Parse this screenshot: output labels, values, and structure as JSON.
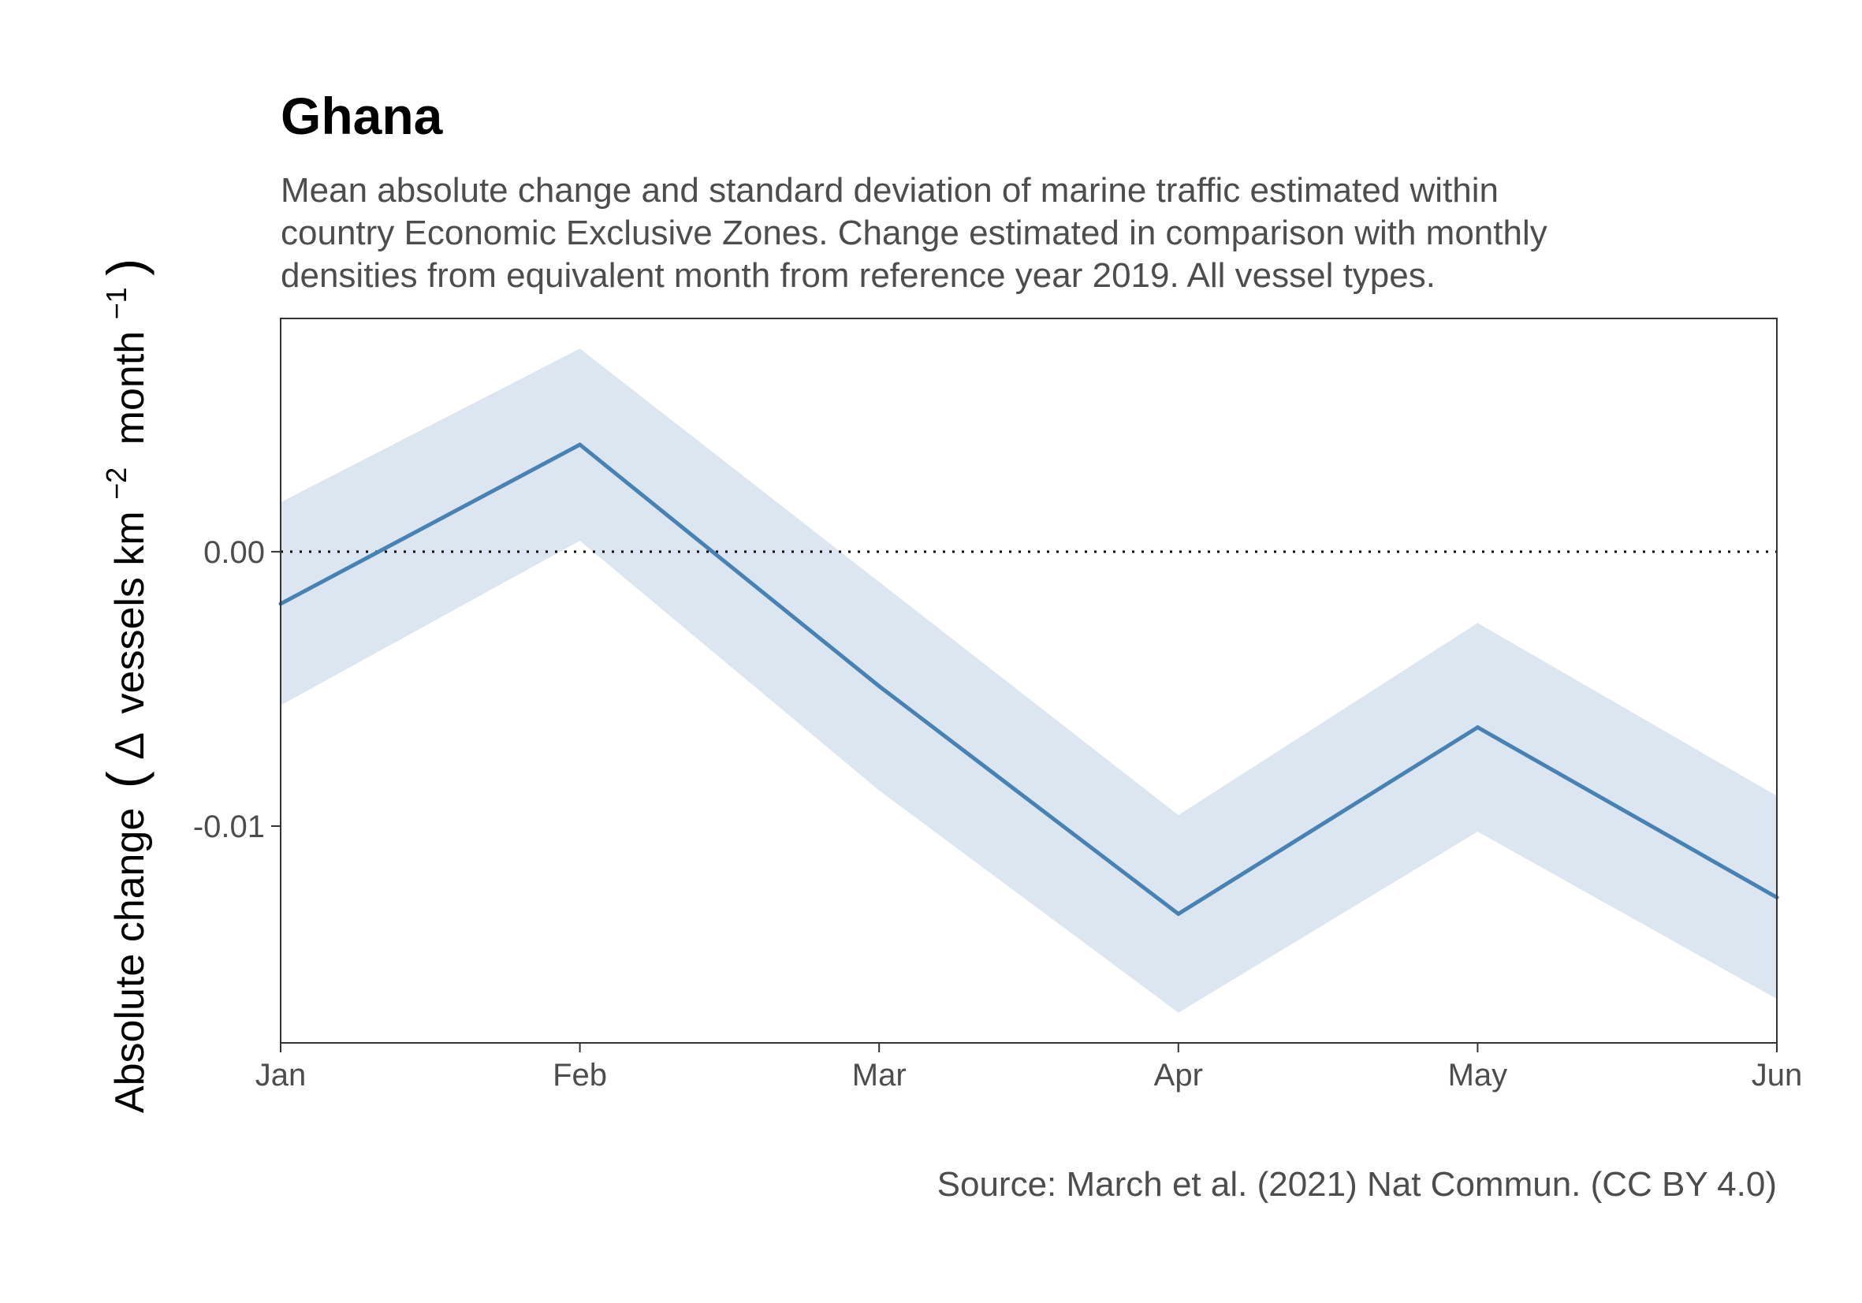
{
  "colors": {
    "line": "#4682b4",
    "ribbon": "#dce6f0",
    "text_dark": "#000000",
    "text_gray": "#4d4d4d",
    "axis": "#333333"
  },
  "chart_data": {
    "type": "line",
    "title": "Ghana",
    "subtitle": [
      "Mean absolute change and standard deviation of marine traffic estimated within",
      "country Economic Exclusive Zones. Change estimated in comparison with monthly",
      "densities from equivalent month from reference year 2019. All vessel types."
    ],
    "ylabel": {
      "pre": "Absolute change",
      "delta": "Δ",
      "units_a": "vessels km",
      "sup_a": "−2",
      "units_b": "month",
      "sup_b": "−1"
    },
    "caption": "Source: March et al. (2021) Nat Commun. (CC BY 4.0)",
    "x": [
      "Jan",
      "Feb",
      "Mar",
      "Apr",
      "May",
      "Jun"
    ],
    "series": [
      {
        "values": [
          -0.0019,
          0.0039,
          -0.0049,
          -0.0132,
          -0.0064,
          -0.0126
        ],
        "sd": [
          0.0037,
          0.0035,
          0.0038,
          0.0036,
          0.0038,
          0.0037
        ]
      }
    ],
    "reference_line": 0,
    "ylim": [
      -0.0179,
      0.0085
    ],
    "yticks": [
      0.0,
      -0.01
    ],
    "ytick_labels": [
      "0.00",
      "-0.01"
    ],
    "grid": false,
    "legend": "none"
  }
}
